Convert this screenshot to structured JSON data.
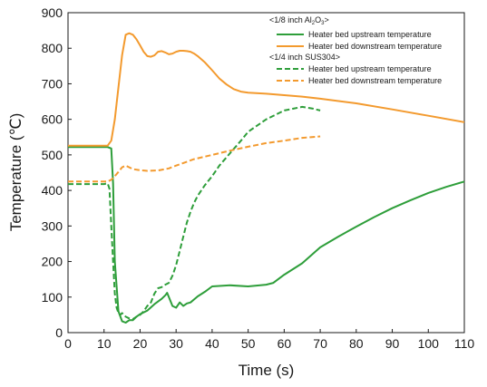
{
  "chart_data": {
    "type": "line",
    "xlabel": "Time (s)",
    "ylabel": "Temperature (℃)",
    "xlim": [
      0,
      110
    ],
    "ylim": [
      0,
      900
    ],
    "x_ticks": [
      "0",
      "10",
      "20",
      "30",
      "40",
      "50",
      "60",
      "70",
      "80",
      "90",
      "100",
      "110"
    ],
    "y_ticks": [
      "0",
      "100",
      "200",
      "300",
      "400",
      "500",
      "600",
      "700",
      "800",
      "900"
    ],
    "grid": false,
    "legend_position": "top-right",
    "legend_groups": [
      {
        "title_main": "<1/8 inch Al",
        "title_sub1": "2",
        "title_mid": "O",
        "title_sub2": "3",
        "title_end": ">"
      },
      {
        "title_main": "<1/4 inch SUS304>",
        "title_sub1": "",
        "title_mid": "",
        "title_sub2": "",
        "title_end": ""
      }
    ],
    "series": [
      {
        "name": "Heater bed upstream temperature",
        "group": 0,
        "color": "#2e9e3a",
        "dash": "solid",
        "x": [
          0,
          11,
          12,
          12.5,
          13,
          14,
          15,
          16,
          17,
          18,
          19,
          20,
          22,
          24,
          26,
          27,
          27.5,
          28,
          29,
          30,
          31,
          32,
          33,
          34,
          36,
          38,
          40,
          45,
          50,
          55,
          57,
          60,
          65,
          70,
          75,
          80,
          85,
          90,
          95,
          100,
          105,
          110
        ],
        "y": [
          522,
          522,
          518,
          420,
          200,
          60,
          32,
          28,
          35,
          35,
          45,
          52,
          62,
          80,
          95,
          105,
          112,
          100,
          75,
          70,
          85,
          75,
          82,
          85,
          102,
          115,
          130,
          133,
          130,
          135,
          140,
          163,
          195,
          240,
          270,
          298,
          325,
          350,
          372,
          393,
          410,
          425
        ]
      },
      {
        "name": "Heater bed downstream temperature",
        "group": 0,
        "color": "#f39a2e",
        "dash": "solid",
        "x": [
          0,
          11,
          12,
          13,
          14,
          15,
          16,
          17,
          18,
          19,
          20,
          21,
          22,
          23,
          24,
          25,
          26,
          27,
          28,
          29,
          30,
          31,
          32,
          33,
          34,
          35,
          36,
          38,
          40,
          42,
          44,
          46,
          48,
          50,
          55,
          60,
          65,
          70,
          80,
          90,
          100,
          110
        ],
        "y": [
          526,
          526,
          540,
          600,
          690,
          780,
          838,
          842,
          838,
          825,
          808,
          790,
          778,
          776,
          780,
          790,
          792,
          788,
          783,
          785,
          790,
          793,
          793,
          792,
          790,
          785,
          778,
          760,
          738,
          715,
          698,
          685,
          678,
          675,
          672,
          668,
          664,
          658,
          645,
          628,
          610,
          592
        ]
      },
      {
        "name": "Heater bed upstream temperature",
        "group": 1,
        "color": "#2e9e3a",
        "dash": "dashed",
        "x": [
          0,
          10,
          11,
          11.5,
          12,
          12.5,
          13,
          13.5,
          14,
          14.5,
          15,
          16,
          17,
          18,
          19,
          20,
          21,
          22,
          23,
          24,
          25,
          26,
          27,
          28,
          29,
          30,
          31,
          32,
          33,
          34,
          35,
          36,
          37,
          38,
          40,
          42,
          45,
          48,
          50,
          55,
          60,
          65,
          68,
          70
        ],
        "y": [
          418,
          418,
          420,
          405,
          300,
          200,
          110,
          70,
          55,
          50,
          55,
          45,
          40,
          38,
          45,
          50,
          60,
          75,
          85,
          110,
          125,
          128,
          135,
          140,
          160,
          190,
          230,
          270,
          310,
          340,
          365,
          385,
          400,
          415,
          440,
          470,
          505,
          540,
          565,
          600,
          625,
          635,
          630,
          625
        ]
      },
      {
        "name": "Heater bed downstream temperature",
        "group": 1,
        "color": "#f39a2e",
        "dash": "dashed",
        "x": [
          0,
          11,
          12,
          13,
          14,
          15,
          16,
          17,
          18,
          20,
          22,
          25,
          28,
          30,
          35,
          40,
          45,
          50,
          55,
          60,
          65,
          70
        ],
        "y": [
          425,
          425,
          430,
          440,
          452,
          465,
          470,
          465,
          460,
          457,
          455,
          456,
          462,
          470,
          488,
          500,
          512,
          523,
          533,
          540,
          548,
          552
        ]
      }
    ]
  }
}
